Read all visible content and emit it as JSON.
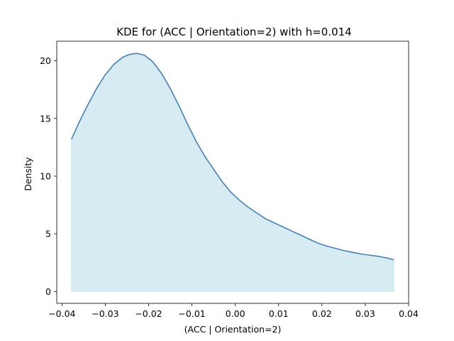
{
  "chart_data": {
    "type": "area",
    "title": "KDE for (ACC | Orientation=2) with h=0.014",
    "xlabel": "(ACC | Orientation=2)",
    "ylabel": "Density",
    "xlim": [
      -0.0412,
      0.04
    ],
    "ylim": [
      -1.03,
      21.7
    ],
    "grid": false,
    "legend": "none",
    "x_ticks": [
      {
        "value": -0.04,
        "label": "−0.04"
      },
      {
        "value": -0.03,
        "label": "−0.03"
      },
      {
        "value": -0.02,
        "label": "−0.02"
      },
      {
        "value": -0.01,
        "label": "−0.01"
      },
      {
        "value": 0.0,
        "label": "0.00"
      },
      {
        "value": 0.01,
        "label": "0.01"
      },
      {
        "value": 0.02,
        "label": "0.02"
      },
      {
        "value": 0.03,
        "label": "0.03"
      },
      {
        "value": 0.04,
        "label": "0.04"
      }
    ],
    "y_ticks": [
      {
        "value": 0,
        "label": "0"
      },
      {
        "value": 5,
        "label": "5"
      },
      {
        "value": 10,
        "label": "10"
      },
      {
        "value": 15,
        "label": "15"
      },
      {
        "value": 20,
        "label": "20"
      }
    ],
    "series": [
      {
        "line_color": "#4682b4",
        "fill_color": "#add8e6",
        "fill_opacity": 0.5,
        "points": [
          {
            "x": -0.0378,
            "y": 13.2
          },
          {
            "x": -0.036,
            "y": 14.7
          },
          {
            "x": -0.034,
            "y": 16.2
          },
          {
            "x": -0.032,
            "y": 17.6
          },
          {
            "x": -0.03,
            "y": 18.8
          },
          {
            "x": -0.028,
            "y": 19.7
          },
          {
            "x": -0.026,
            "y": 20.3
          },
          {
            "x": -0.0245,
            "y": 20.55
          },
          {
            "x": -0.0228,
            "y": 20.65
          },
          {
            "x": -0.021,
            "y": 20.5
          },
          {
            "x": -0.019,
            "y": 19.9
          },
          {
            "x": -0.017,
            "y": 18.9
          },
          {
            "x": -0.015,
            "y": 17.6
          },
          {
            "x": -0.013,
            "y": 16.1
          },
          {
            "x": -0.011,
            "y": 14.5
          },
          {
            "x": -0.009,
            "y": 13.0
          },
          {
            "x": -0.007,
            "y": 11.7
          },
          {
            "x": -0.005,
            "y": 10.6
          },
          {
            "x": -0.003,
            "y": 9.5
          },
          {
            "x": -0.001,
            "y": 8.6
          },
          {
            "x": 0.001,
            "y": 7.9
          },
          {
            "x": 0.003,
            "y": 7.3
          },
          {
            "x": 0.005,
            "y": 6.8
          },
          {
            "x": 0.007,
            "y": 6.3
          },
          {
            "x": 0.009,
            "y": 5.95
          },
          {
            "x": 0.011,
            "y": 5.6
          },
          {
            "x": 0.013,
            "y": 5.25
          },
          {
            "x": 0.015,
            "y": 4.9
          },
          {
            "x": 0.017,
            "y": 4.55
          },
          {
            "x": 0.019,
            "y": 4.2
          },
          {
            "x": 0.021,
            "y": 3.95
          },
          {
            "x": 0.023,
            "y": 3.75
          },
          {
            "x": 0.025,
            "y": 3.55
          },
          {
            "x": 0.027,
            "y": 3.4
          },
          {
            "x": 0.029,
            "y": 3.25
          },
          {
            "x": 0.031,
            "y": 3.15
          },
          {
            "x": 0.033,
            "y": 3.05
          },
          {
            "x": 0.035,
            "y": 2.9
          },
          {
            "x": 0.0366,
            "y": 2.75
          }
        ]
      }
    ]
  }
}
